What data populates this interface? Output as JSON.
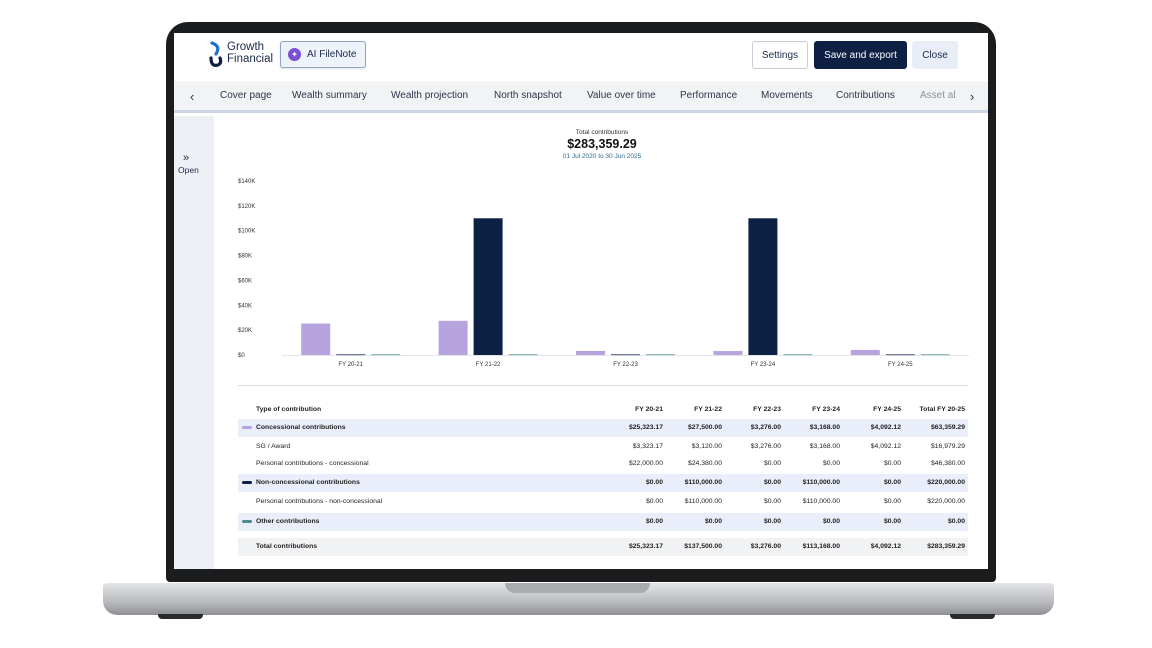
{
  "header": {
    "logo_line1": "Growth",
    "logo_line2": "Financial",
    "ai_button": "AI FileNote",
    "settings": "Settings",
    "save_export": "Save and export",
    "close": "Close"
  },
  "tabs": {
    "prev": "‹",
    "next": "›",
    "items": [
      "Cover page",
      "Wealth summary",
      "Wealth projection",
      "North snapshot",
      "Value over time",
      "Performance",
      "Movements",
      "Contributions",
      "Asset al"
    ]
  },
  "side": {
    "chevron": "»",
    "label": "Open"
  },
  "summary": {
    "label": "Total contributions",
    "value": "$283,359.29",
    "dates": "01 Jul 2020 to 30 Jun 2025"
  },
  "colors": {
    "concessional": "#b7a3de",
    "non_concessional": "#0d2145",
    "other": "#4f8a90"
  },
  "chart_data": {
    "type": "bar",
    "categories": [
      "FY 20-21",
      "FY 21-22",
      "FY 22-23",
      "FY 23-24",
      "FY 24-25"
    ],
    "series": [
      {
        "key": "concessional",
        "values": [
          25323.17,
          27500.0,
          3276.0,
          3168.0,
          4092.12
        ]
      },
      {
        "key": "non_concessional",
        "values": [
          0,
          110000.0,
          0,
          110000.0,
          0
        ]
      },
      {
        "key": "other",
        "values": [
          0,
          0,
          0,
          0,
          0
        ]
      }
    ],
    "y_ticks": [
      "$0",
      "$20K",
      "$40K",
      "$60K",
      "$80K",
      "$100K",
      "$120K",
      "$140K"
    ],
    "ylim": [
      0,
      140000
    ],
    "grid": false
  },
  "table": {
    "headers": [
      "Type of contribution",
      "FY 20-21",
      "FY 21-22",
      "FY 22-23",
      "FY 23-24",
      "FY 24-25",
      "Total FY 20-25"
    ],
    "rows": [
      {
        "kind": "group",
        "swatch": "concessional",
        "cells": [
          "Concessional contributions",
          "$25,323.17",
          "$27,500.00",
          "$3,276.00",
          "$3,168.00",
          "$4,092.12",
          "$63,359.29"
        ]
      },
      {
        "kind": "item",
        "cells": [
          "SG / Award",
          "$3,323.17",
          "$3,120.00",
          "$3,276.00",
          "$3,168.00",
          "$4,092.12",
          "$16,979.29"
        ]
      },
      {
        "kind": "item",
        "cells": [
          "Personal contributions - concessional",
          "$22,000.00",
          "$24,380.00",
          "$0.00",
          "$0.00",
          "$0.00",
          "$46,380.00"
        ]
      },
      {
        "kind": "group",
        "swatch": "non_concessional",
        "cells": [
          "Non-concessional contributions",
          "$0.00",
          "$110,000.00",
          "$0.00",
          "$110,000.00",
          "$0.00",
          "$220,000.00"
        ]
      },
      {
        "kind": "item",
        "cells": [
          "Personal contributions - non-concessional",
          "$0.00",
          "$110,000.00",
          "$0.00",
          "$110,000.00",
          "$0.00",
          "$220,000.00"
        ]
      },
      {
        "kind": "group",
        "swatch": "other",
        "cells": [
          "Other contributions",
          "$0.00",
          "$0.00",
          "$0.00",
          "$0.00",
          "$0.00",
          "$0.00"
        ]
      },
      {
        "kind": "total",
        "cells": [
          "Total contributions",
          "$25,323.17",
          "$137,500.00",
          "$3,276.00",
          "$113,168.00",
          "$4,092.12",
          "$283,359.29"
        ]
      }
    ]
  }
}
